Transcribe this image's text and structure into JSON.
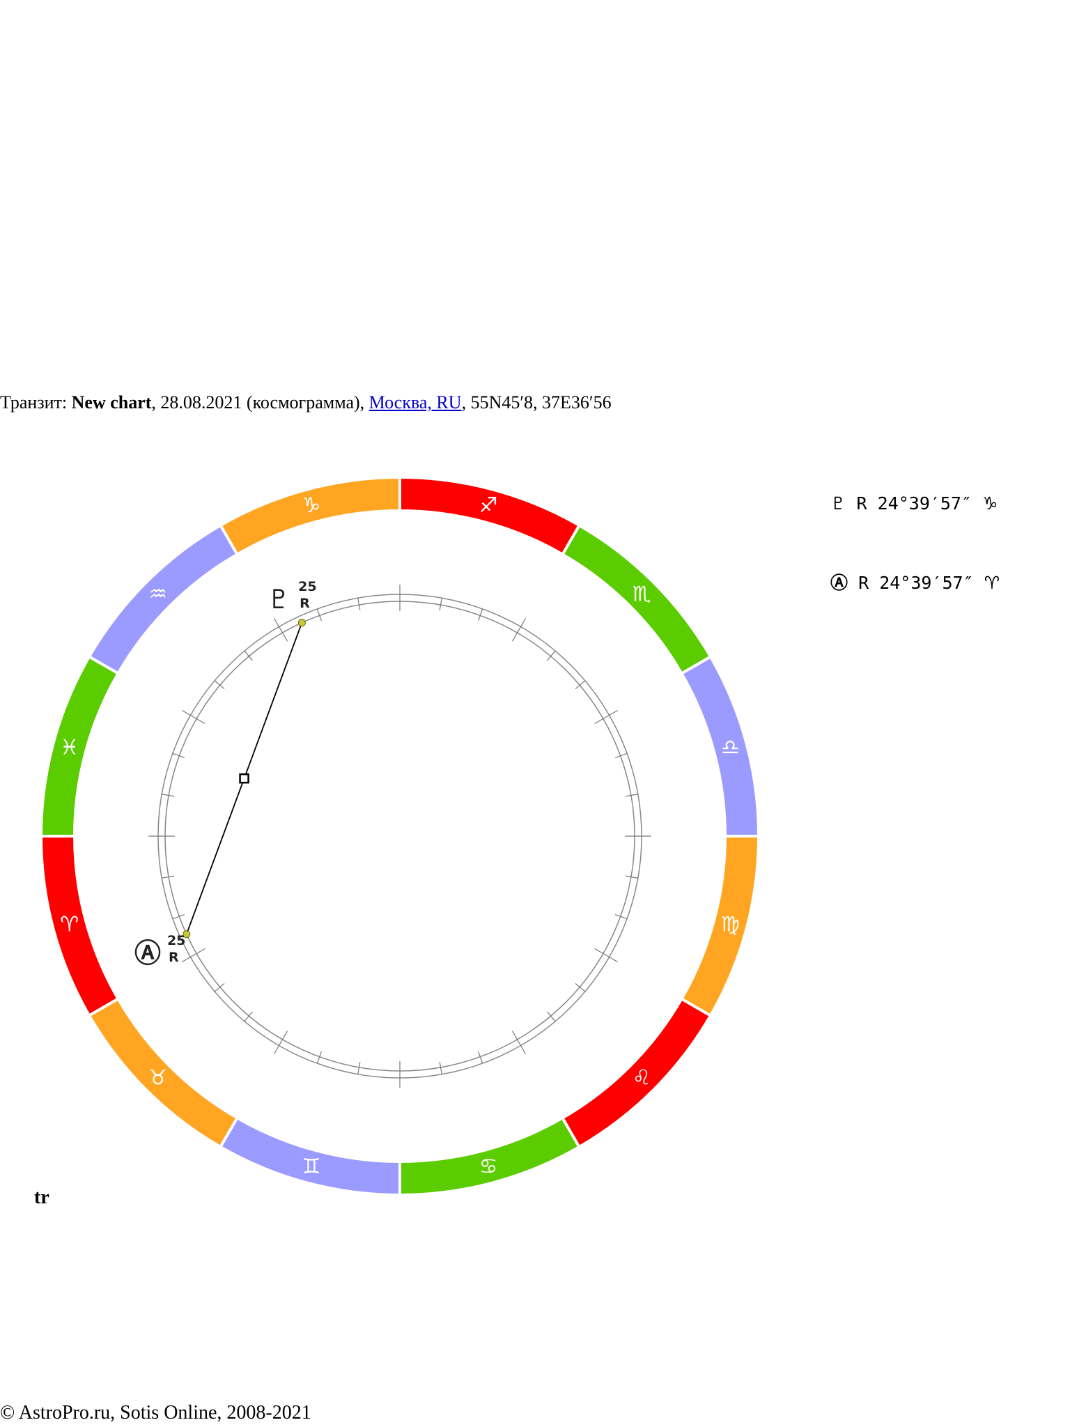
{
  "header": {
    "prefix": "Транзит: ",
    "chart_name": "New chart",
    "date_part": ", 28.08.2021 (космограмма), ",
    "location": "Москва, RU",
    "coords": ", 55N45′8, 37E36′56"
  },
  "legend": [
    {
      "glyph": "♇",
      "retro": "R",
      "position": "24°39′57″",
      "sign": "♑"
    },
    {
      "glyph": "Ⓐ",
      "retro": "R",
      "position": "24°39′57″",
      "sign": "♈"
    }
  ],
  "wheel": {
    "signs": [
      {
        "glyph": "♈",
        "color": "#ff0000"
      },
      {
        "glyph": "♉",
        "color": "#ffa522"
      },
      {
        "glyph": "♊",
        "color": "#9b9bff"
      },
      {
        "glyph": "♋",
        "color": "#5bcc00"
      },
      {
        "glyph": "♌",
        "color": "#ff0000"
      },
      {
        "glyph": "♍",
        "color": "#ffa522"
      },
      {
        "glyph": "♎",
        "color": "#9b9bff"
      },
      {
        "glyph": "♏",
        "color": "#5bcc00"
      },
      {
        "glyph": "♐",
        "color": "#ff0000"
      },
      {
        "glyph": "♑",
        "color": "#ffa522"
      },
      {
        "glyph": "♒",
        "color": "#9b9bff"
      },
      {
        "glyph": "♓",
        "color": "#5bcc00"
      }
    ],
    "planets": [
      {
        "name": "pluto",
        "glyph": "♇",
        "degree": "25",
        "retro": "R",
        "longitude": 294.67
      },
      {
        "name": "node",
        "glyph": "Ⓐ",
        "degree": "25",
        "retro": "R",
        "longitude": 24.67
      }
    ],
    "aspect": {
      "type": "square",
      "from": "pluto",
      "to": "node"
    },
    "point_color": "#c8c83c"
  },
  "tr_label": "tr",
  "footer": "© AstroPro.ru, Sotis Online, 2008-2021"
}
